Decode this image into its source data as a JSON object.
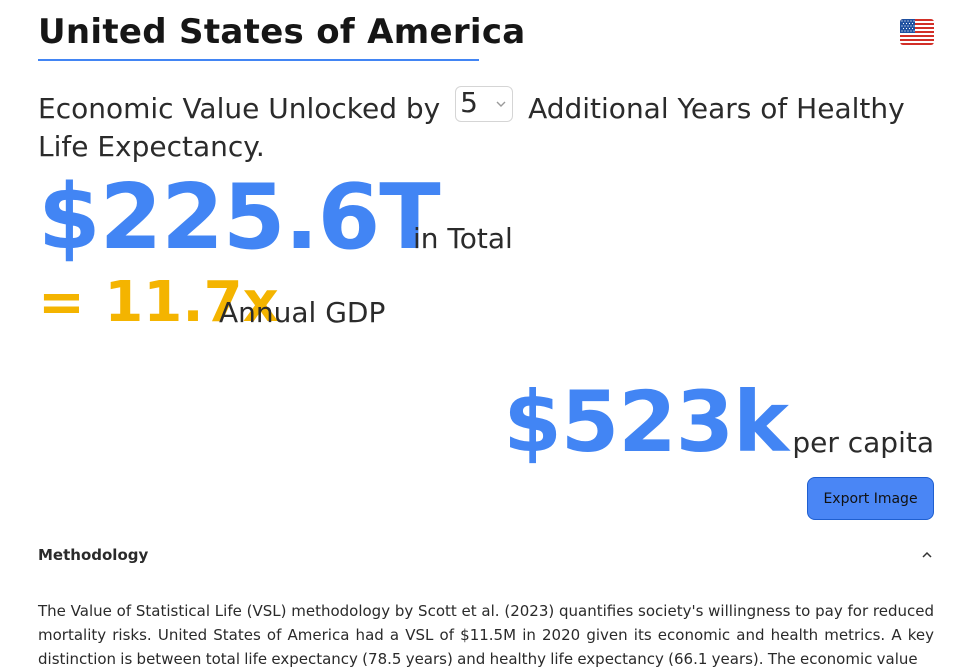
{
  "header": {
    "country": "United States of America",
    "flag_icon": "us-flag-icon"
  },
  "colors": {
    "accent_blue": "#4285f4",
    "accent_yellow": "#f4b400",
    "button_border": "#1f5fd0"
  },
  "headline": {
    "prefix": "Economic Value Unlocked by",
    "years_selected": "5",
    "suffix": "Additional Years of Healthy Life Expectancy."
  },
  "total": {
    "value": "$225.6T",
    "label": "in Total"
  },
  "gdp": {
    "multiple": "= 11.7x",
    "label": "Annual GDP"
  },
  "per_capita": {
    "value": "$523k",
    "label": "per capita"
  },
  "export": {
    "label": "Export Image"
  },
  "methodology": {
    "title": "Methodology",
    "expanded": true,
    "text": "The Value of Statistical Life (VSL) methodology by Scott et al. (2023) quantifies society's willingness to pay for reduced mortality risks. United States of America had a VSL of $11.5M in 2020 given its economic and health metrics. A key distinction is between total life expectancy (78.5 years) and healthy life expectancy (66.1 years). The economic value"
  }
}
